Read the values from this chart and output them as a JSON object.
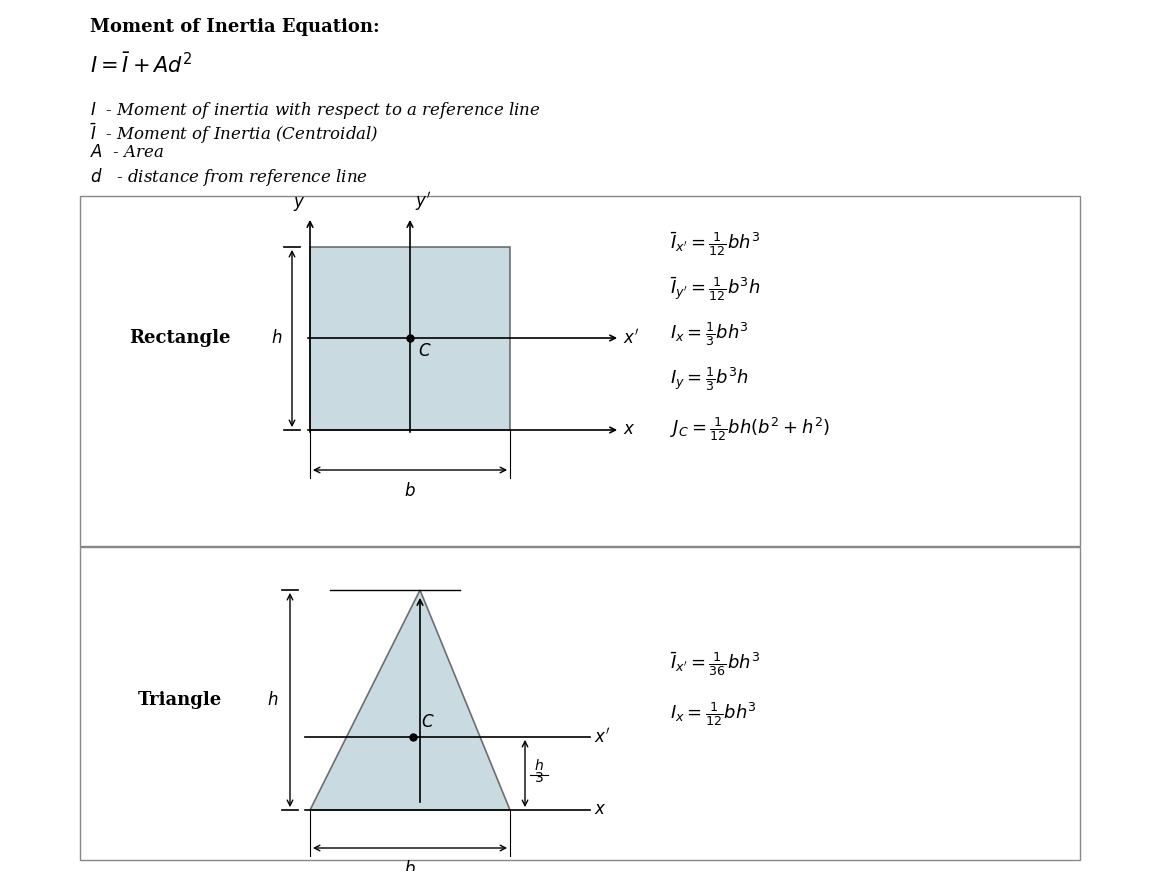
{
  "bg_color": "#ffffff",
  "title": "Moment of Inertia Equation:",
  "equation": "$I  = \\bar{I} + Ad^2$",
  "legend_lines": [
    "$I$  - Moment of inertia with respect to a reference line",
    "$\\bar{I}$  - Moment of Inertia (Centroidal)",
    "$A$  - Area",
    "$d$   - distance from reference line"
  ],
  "rect_formulas": [
    "$\\bar{I}_{x'} = \\frac{1}{12}bh^3$",
    "$\\bar{I}_{y'} = \\frac{1}{12}b^3h$",
    "$I_x = \\frac{1}{3}bh^3$",
    "$I_y = \\frac{1}{3}b^3h$",
    "$J_C = \\frac{1}{12}bh(b^2 + h^2)$"
  ],
  "tri_formulas": [
    "$\\bar{I}_{x'} = \\frac{1}{36}bh^3$",
    "$I_x = \\frac{1}{12}bh^3$"
  ],
  "rect_fill": "#b8cfd8",
  "rect_edge": "#444444",
  "tri_fill": "#b8cfd8",
  "tri_edge": "#444444",
  "box_edge": "#888888",
  "font_size_title": 13,
  "font_size_eq": 15,
  "font_size_legend": 12,
  "font_size_formula": 13,
  "font_size_label": 12,
  "font_size_shape_label": 13
}
